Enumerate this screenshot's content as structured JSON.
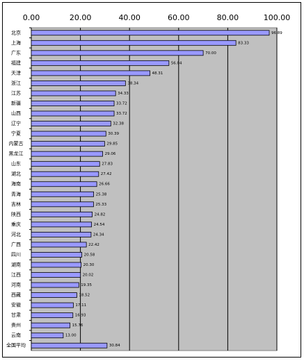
{
  "chart_data": {
    "type": "hbar",
    "categories": [
      "北京",
      "上海",
      "广东",
      "福建",
      "天津",
      "浙江",
      "江苏",
      "新疆",
      "山西",
      "辽宁",
      "宁夏",
      "内蒙古",
      "黑龙江",
      "山东",
      "湖北",
      "海南",
      "青海",
      "吉林",
      "陕西",
      "重庆",
      "河北",
      "广西",
      "四川",
      "湖南",
      "江西",
      "河南",
      "西藏",
      "安徽",
      "甘肃",
      "贵州",
      "云南",
      "全国平均"
    ],
    "values": [
      96.89,
      83.33,
      70.0,
      56.04,
      48.31,
      38.34,
      34.33,
      33.72,
      33.72,
      32.38,
      30.39,
      29.85,
      29.06,
      27.83,
      27.42,
      26.66,
      25.38,
      25.33,
      24.82,
      24.54,
      24.34,
      22.42,
      20.58,
      20.3,
      20.02,
      19.35,
      18.52,
      17.11,
      16.93,
      15.76,
      13.0,
      30.84
    ],
    "value_labels": [
      "96.89",
      "83.33",
      "70.00",
      "56.04",
      "48.31",
      "38.34",
      "34.33",
      "33.72",
      "33.72",
      "32.38",
      "30.39",
      "29.85",
      "29.06",
      "27.83",
      "27.42",
      "26.66",
      "25.38",
      "25.33",
      "24.82",
      "24.54",
      "24.34",
      "22.42",
      "20.58",
      "20.30",
      "20.02",
      "19.35",
      "18.52",
      "17.11",
      "16.93",
      "15.76",
      "13.00",
      "30.84"
    ],
    "color": "#9999ff",
    "xlim": [
      0,
      100
    ],
    "xticks": [
      {
        "value": 0,
        "label": "0.00"
      },
      {
        "value": 20,
        "label": "20.00"
      },
      {
        "value": 40,
        "label": "40.00"
      },
      {
        "value": 60,
        "label": "60.00"
      },
      {
        "value": 80,
        "label": "80.00"
      },
      {
        "value": 100,
        "label": "100.00"
      }
    ],
    "grid": true
  }
}
